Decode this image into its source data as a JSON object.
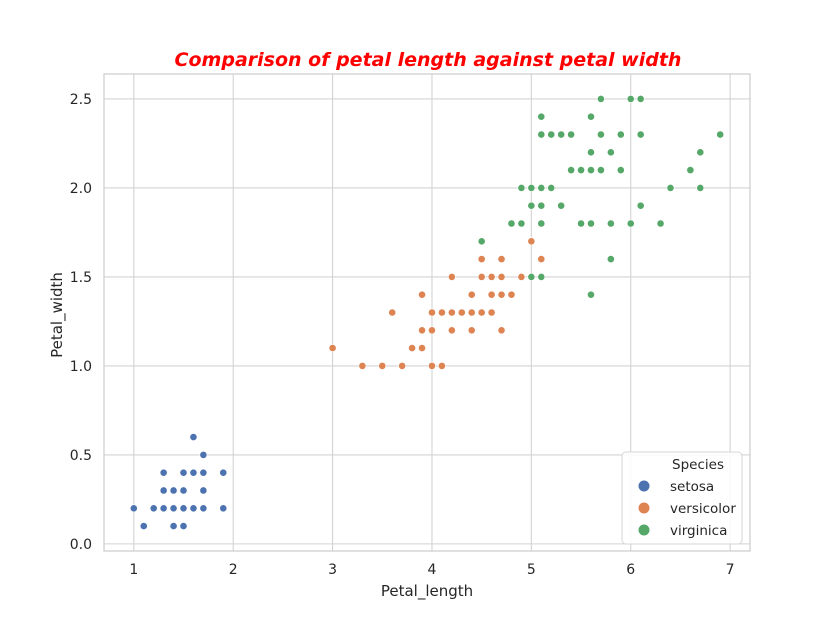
{
  "chart_data": {
    "type": "scatter",
    "title": "Comparison of petal length against petal width",
    "title_color": "#ff0000",
    "xlabel": "Petal_length",
    "ylabel": "Petal_width",
    "xlim": [
      0.7,
      7.2
    ],
    "ylim": [
      -0.04,
      2.64
    ],
    "xticks": [
      1,
      2,
      3,
      4,
      5,
      6,
      7
    ],
    "xtick_labels": [
      "1",
      "2",
      "3",
      "4",
      "5",
      "6",
      "7"
    ],
    "yticks": [
      0.0,
      0.5,
      1.0,
      1.5,
      2.0,
      2.5
    ],
    "ytick_labels": [
      "0.0",
      "0.5",
      "1.0",
      "1.5",
      "2.0",
      "2.5"
    ],
    "grid": true,
    "legend": {
      "title": "Species",
      "placement": "lower-right"
    },
    "series": [
      {
        "name": "setosa",
        "color": "#4c72b0",
        "points": [
          [
            1.0,
            0.2
          ],
          [
            1.1,
            0.1
          ],
          [
            1.2,
            0.2
          ],
          [
            1.3,
            0.2
          ],
          [
            1.3,
            0.3
          ],
          [
            1.3,
            0.4
          ],
          [
            1.4,
            0.1
          ],
          [
            1.4,
            0.2
          ],
          [
            1.4,
            0.3
          ],
          [
            1.5,
            0.1
          ],
          [
            1.5,
            0.2
          ],
          [
            1.5,
            0.3
          ],
          [
            1.5,
            0.4
          ],
          [
            1.6,
            0.2
          ],
          [
            1.6,
            0.4
          ],
          [
            1.6,
            0.6
          ],
          [
            1.7,
            0.2
          ],
          [
            1.7,
            0.3
          ],
          [
            1.7,
            0.4
          ],
          [
            1.7,
            0.5
          ],
          [
            1.9,
            0.2
          ],
          [
            1.9,
            0.4
          ]
        ]
      },
      {
        "name": "versicolor",
        "color": "#dd8452",
        "points": [
          [
            3.0,
            1.1
          ],
          [
            3.3,
            1.0
          ],
          [
            3.5,
            1.0
          ],
          [
            3.6,
            1.3
          ],
          [
            3.7,
            1.0
          ],
          [
            3.8,
            1.1
          ],
          [
            3.9,
            1.1
          ],
          [
            3.9,
            1.2
          ],
          [
            3.9,
            1.4
          ],
          [
            4.0,
            1.0
          ],
          [
            4.0,
            1.2
          ],
          [
            4.0,
            1.3
          ],
          [
            4.1,
            1.0
          ],
          [
            4.1,
            1.3
          ],
          [
            4.2,
            1.2
          ],
          [
            4.2,
            1.3
          ],
          [
            4.2,
            1.5
          ],
          [
            4.3,
            1.3
          ],
          [
            4.4,
            1.2
          ],
          [
            4.4,
            1.3
          ],
          [
            4.4,
            1.4
          ],
          [
            4.5,
            1.3
          ],
          [
            4.5,
            1.5
          ],
          [
            4.5,
            1.6
          ],
          [
            4.6,
            1.3
          ],
          [
            4.6,
            1.4
          ],
          [
            4.6,
            1.5
          ],
          [
            4.7,
            1.2
          ],
          [
            4.7,
            1.4
          ],
          [
            4.7,
            1.5
          ],
          [
            4.7,
            1.6
          ],
          [
            4.8,
            1.4
          ],
          [
            4.9,
            1.5
          ],
          [
            5.0,
            1.7
          ],
          [
            5.1,
            1.6
          ]
        ]
      },
      {
        "name": "virginica",
        "color": "#55a868",
        "points": [
          [
            4.5,
            1.7
          ],
          [
            4.8,
            1.8
          ],
          [
            4.9,
            1.8
          ],
          [
            4.9,
            2.0
          ],
          [
            5.0,
            1.5
          ],
          [
            5.0,
            1.9
          ],
          [
            5.0,
            2.0
          ],
          [
            5.1,
            1.5
          ],
          [
            5.1,
            1.8
          ],
          [
            5.1,
            1.9
          ],
          [
            5.1,
            2.0
          ],
          [
            5.1,
            2.3
          ],
          [
            5.1,
            2.4
          ],
          [
            5.2,
            2.0
          ],
          [
            5.2,
            2.3
          ],
          [
            5.3,
            1.9
          ],
          [
            5.3,
            2.3
          ],
          [
            5.4,
            2.1
          ],
          [
            5.4,
            2.3
          ],
          [
            5.5,
            1.8
          ],
          [
            5.5,
            2.1
          ],
          [
            5.6,
            1.4
          ],
          [
            5.6,
            1.8
          ],
          [
            5.6,
            2.1
          ],
          [
            5.6,
            2.2
          ],
          [
            5.6,
            2.4
          ],
          [
            5.7,
            2.1
          ],
          [
            5.7,
            2.3
          ],
          [
            5.7,
            2.5
          ],
          [
            5.8,
            1.6
          ],
          [
            5.8,
            1.8
          ],
          [
            5.8,
            2.2
          ],
          [
            5.9,
            2.1
          ],
          [
            5.9,
            2.3
          ],
          [
            6.0,
            1.8
          ],
          [
            6.0,
            2.5
          ],
          [
            6.1,
            1.9
          ],
          [
            6.1,
            2.3
          ],
          [
            6.1,
            2.5
          ],
          [
            6.3,
            1.8
          ],
          [
            6.4,
            2.0
          ],
          [
            6.6,
            2.1
          ],
          [
            6.7,
            2.0
          ],
          [
            6.7,
            2.2
          ],
          [
            6.9,
            2.3
          ]
        ]
      }
    ]
  }
}
